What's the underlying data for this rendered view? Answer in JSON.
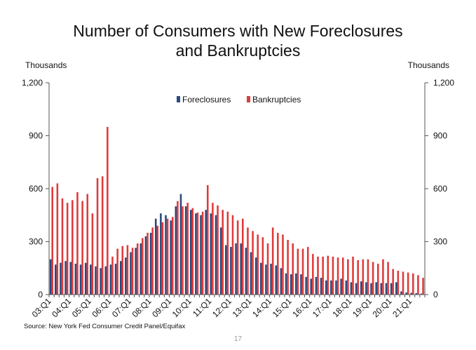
{
  "page_number": "17",
  "source": "Source: New York Fed Consumer Credit Panel/Equifax",
  "colors": {
    "foreclosures": "#2a4a7f",
    "bankruptcies": "#e03a3a",
    "axis": "#555555",
    "background": "#ffffff"
  },
  "chart_data": {
    "type": "bar",
    "title_line1": "Number of Consumers with New Foreclosures",
    "title_line2": "and Bankruptcies",
    "ylabel_left": "Thousands",
    "ylabel_right": "Thousands",
    "ylim": [
      0,
      1200
    ],
    "yticks": [
      0,
      300,
      600,
      900,
      1200
    ],
    "ytick_labels": [
      "0",
      "300",
      "600",
      "900",
      "1,200"
    ],
    "grid": false,
    "legend_position": "top-center",
    "xtick_labels": [
      "03:Q1",
      "04:Q1",
      "05:Q1",
      "06:Q1",
      "07:Q1",
      "08:Q1",
      "09:Q1",
      "10:Q1",
      "11:Q1",
      "12:Q1",
      "13:Q1",
      "14:Q1",
      "15:Q1",
      "16:Q1",
      "17:Q1",
      "18:Q1",
      "19:Q1",
      "20:Q1",
      "21:Q1"
    ],
    "xtick_every": 4,
    "categories": [
      "03Q1",
      "03Q2",
      "03Q3",
      "03Q4",
      "04Q1",
      "04Q2",
      "04Q3",
      "04Q4",
      "05Q1",
      "05Q2",
      "05Q3",
      "05Q4",
      "06Q1",
      "06Q2",
      "06Q3",
      "06Q4",
      "07Q1",
      "07Q2",
      "07Q3",
      "07Q4",
      "08Q1",
      "08Q2",
      "08Q3",
      "08Q4",
      "09Q1",
      "09Q2",
      "09Q3",
      "09Q4",
      "10Q1",
      "10Q2",
      "10Q3",
      "10Q4",
      "11Q1",
      "11Q2",
      "11Q3",
      "11Q4",
      "12Q1",
      "12Q2",
      "12Q3",
      "12Q4",
      "13Q1",
      "13Q2",
      "13Q3",
      "13Q4",
      "14Q1",
      "14Q2",
      "14Q3",
      "14Q4",
      "15Q1",
      "15Q2",
      "15Q3",
      "15Q4",
      "16Q1",
      "16Q2",
      "16Q3",
      "16Q4",
      "17Q1",
      "17Q2",
      "17Q3",
      "17Q4",
      "18Q1",
      "18Q2",
      "18Q3",
      "18Q4",
      "19Q1",
      "19Q2",
      "19Q3",
      "19Q4",
      "20Q1",
      "20Q2",
      "20Q3",
      "20Q4",
      "21Q1",
      "21Q2",
      "21Q3"
    ],
    "series": [
      {
        "name": "Foreclosures",
        "values": [
          200,
          170,
          180,
          190,
          185,
          175,
          170,
          180,
          170,
          160,
          150,
          160,
          170,
          175,
          190,
          210,
          240,
          265,
          290,
          330,
          350,
          430,
          460,
          450,
          420,
          500,
          570,
          500,
          480,
          460,
          450,
          480,
          460,
          450,
          380,
          280,
          270,
          290,
          290,
          265,
          240,
          210,
          180,
          170,
          175,
          165,
          150,
          120,
          115,
          120,
          115,
          100,
          90,
          100,
          95,
          80,
          80,
          80,
          90,
          80,
          70,
          65,
          75,
          70,
          65,
          70,
          65,
          65,
          65,
          70,
          18,
          12,
          10,
          8,
          6
        ],
        "color": "#2a4a7f"
      },
      {
        "name": "Bankruptcies",
        "values": [
          610,
          630,
          545,
          520,
          535,
          580,
          530,
          570,
          460,
          660,
          670,
          950,
          215,
          260,
          275,
          280,
          265,
          290,
          320,
          350,
          380,
          390,
          410,
          430,
          440,
          530,
          500,
          520,
          490,
          465,
          470,
          620,
          520,
          505,
          480,
          470,
          450,
          420,
          430,
          380,
          360,
          340,
          325,
          290,
          380,
          350,
          340,
          310,
          290,
          260,
          260,
          270,
          230,
          215,
          215,
          220,
          215,
          210,
          210,
          200,
          215,
          195,
          200,
          200,
          185,
          175,
          200,
          185,
          145,
          135,
          130,
          125,
          120,
          110,
          95
        ],
        "color": "#e03a3a"
      }
    ]
  }
}
